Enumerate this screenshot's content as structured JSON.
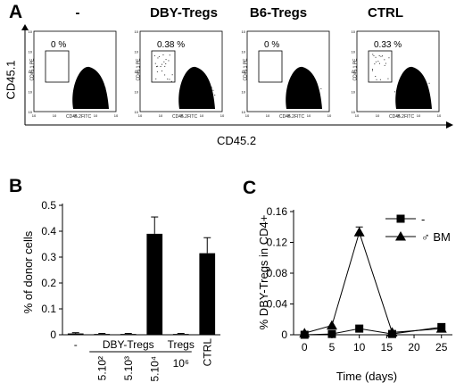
{
  "panelA": {
    "letter": "A",
    "y_label": "CD45.1",
    "x_label": "CD45.2",
    "plots": [
      {
        "title": "-",
        "percent": "0 %",
        "gate_fraction": 0.0
      },
      {
        "title": "DBY-Tregs",
        "percent": "0.38 %",
        "gate_fraction": 0.0038
      },
      {
        "title": "B6-Tregs",
        "percent": "0 %",
        "gate_fraction": 0.0
      },
      {
        "title": "CTRL",
        "percent": "0.33 %",
        "gate_fraction": 0.0033
      }
    ],
    "tiny_y": "CD45.1 PE",
    "tiny_x": "CD45.2FITC",
    "tick_exps": [
      "0",
      "1",
      "2",
      "3",
      "4"
    ],
    "scatter_color": "#000000"
  },
  "chart_data": [
    {
      "type": "bar",
      "letter": "B",
      "ylabel": "% of donor cells",
      "ylim": [
        0,
        0.5
      ],
      "yticks": [
        "0",
        "0.1",
        "0.2",
        "0.3",
        "0.4",
        "0.5"
      ],
      "categories": [
        "-",
        "5.10²",
        "5.10³",
        "5.10⁴",
        "10⁶",
        "CTRL"
      ],
      "group_labels": [
        "DBY-Tregs",
        "Tregs"
      ],
      "values": [
        0.005,
        0.003,
        0.003,
        0.39,
        0.003,
        0.315
      ],
      "errors": [
        0.003,
        0.002,
        0.002,
        0.065,
        0.002,
        0.06
      ],
      "bar_color": "#000000"
    },
    {
      "type": "line",
      "letter": "C",
      "xlabel": "Time (days)",
      "ylabel": "% DBY-Tregs in CD4+",
      "xlim": [
        -2,
        27
      ],
      "ylim": [
        0,
        0.16
      ],
      "xticks": [
        "0",
        "5",
        "10",
        "15",
        "20",
        "25"
      ],
      "yticks": [
        "0",
        "0.04",
        "0.08",
        "0.12",
        "0.16"
      ],
      "legend_position": "top-right",
      "series": [
        {
          "name": "-",
          "marker": "square",
          "x": [
            0,
            5,
            10,
            16,
            25
          ],
          "y": [
            0,
            0.001,
            0.008,
            0.001,
            0.01
          ]
        },
        {
          "name": "♂ BM",
          "marker": "triangle",
          "x": [
            0,
            5,
            10,
            16,
            25
          ],
          "y": [
            0.002,
            0.012,
            0.133,
            0.003,
            0.008
          ],
          "errors": [
            0,
            0,
            0.007,
            0,
            0
          ]
        }
      ]
    }
  ]
}
